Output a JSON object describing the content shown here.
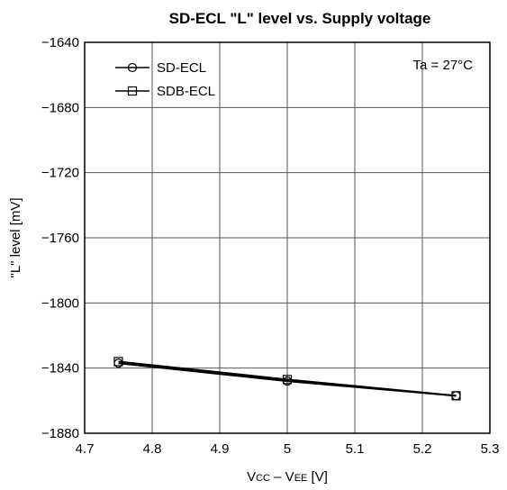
{
  "chart_data": {
    "type": "line",
    "title": "SD-ECL \"L\" level vs. Supply voltage",
    "xlabel": {
      "v1": "V",
      "v1_sub": "CC",
      "dash": " – V",
      "v2_sub": "EE",
      "unit": " [V]"
    },
    "ylabel": "\"L\" level [mV]",
    "annotation": "Ta = 27°C",
    "xlim": [
      4.7,
      5.3
    ],
    "ylim": [
      -1880,
      -1640
    ],
    "x_ticks": [
      {
        "value": 4.7,
        "label": "4.7"
      },
      {
        "value": 4.8,
        "label": "4.8"
      },
      {
        "value": 4.9,
        "label": "4.9"
      },
      {
        "value": 5.0,
        "label": "5"
      },
      {
        "value": 5.1,
        "label": "5.1"
      },
      {
        "value": 5.2,
        "label": "5.2"
      },
      {
        "value": 5.3,
        "label": "5.3"
      }
    ],
    "y_ticks": [
      {
        "value": -1640,
        "label": "−1640"
      },
      {
        "value": -1680,
        "label": "−1680"
      },
      {
        "value": -1720,
        "label": "−1720"
      },
      {
        "value": -1760,
        "label": "−1760"
      },
      {
        "value": -1800,
        "label": "−1800"
      },
      {
        "value": -1840,
        "label": "−1840"
      },
      {
        "value": -1880,
        "label": "−1880"
      }
    ],
    "grid": true,
    "legend_position": "top-left",
    "series": [
      {
        "name": "SD-ECL",
        "marker": "circle",
        "color": "#000000",
        "x": [
          4.75,
          5.0,
          5.25
        ],
        "y": [
          -1837,
          -1848,
          -1857
        ]
      },
      {
        "name": "SDB-ECL",
        "marker": "square",
        "color": "#000000",
        "x": [
          4.75,
          5.0,
          5.25
        ],
        "y": [
          -1836,
          -1847,
          -1857
        ]
      }
    ]
  }
}
